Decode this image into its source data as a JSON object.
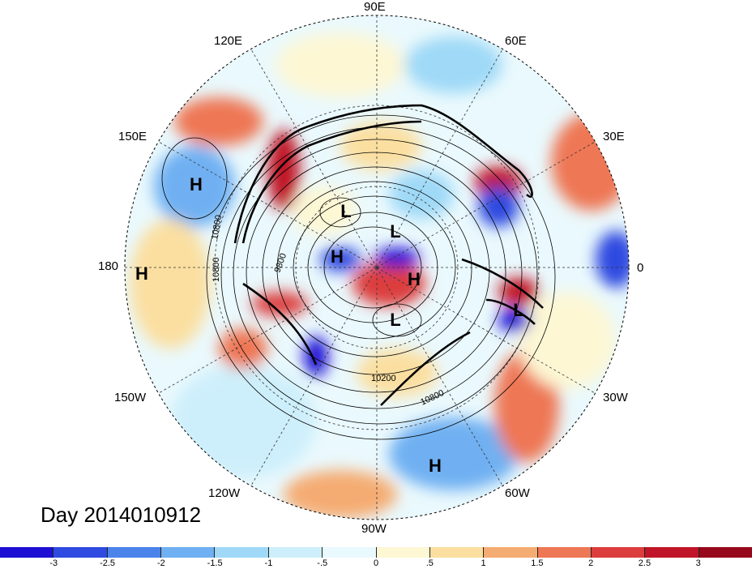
{
  "map": {
    "projection": "north polar stereographic",
    "date_label": "Day 2014010912",
    "longitude_labels": [
      "90E",
      "60E",
      "30E",
      "0",
      "30W",
      "60W",
      "90W",
      "120W",
      "150W",
      "180",
      "150E",
      "120E"
    ],
    "pressure_centers": [
      {
        "type": "H"
      },
      {
        "type": "H"
      },
      {
        "type": "L"
      },
      {
        "type": "L"
      },
      {
        "type": "H"
      },
      {
        "type": "H"
      },
      {
        "type": "L"
      },
      {
        "type": "L"
      },
      {
        "type": "H"
      }
    ],
    "contour_labels": [
      "10800",
      "10800",
      "9800",
      "10200",
      "10800"
    ]
  },
  "colorbar": {
    "ticks": [
      "-3",
      "-2.5",
      "-2",
      "-1.5",
      "-1",
      "-.5",
      "0",
      ".5",
      "1",
      "1.5",
      "2",
      "2.5",
      "3"
    ],
    "colors": [
      "#1d0fd4",
      "#2f4ae0",
      "#4a83ea",
      "#6fb0f2",
      "#9fd9f7",
      "#cdeffb",
      "#eaf9fd",
      "#fdf7d4",
      "#fbdfa0",
      "#f5ac72",
      "#ee7755",
      "#dc3d3d",
      "#c01528",
      "#96091c"
    ]
  }
}
